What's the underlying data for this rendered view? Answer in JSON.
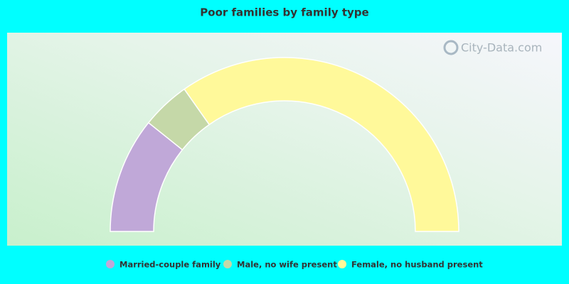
{
  "chart_data": {
    "type": "half-donut",
    "title": "Poor families by family type",
    "watermark": "City-Data.com",
    "categories": [
      "Married-couple family",
      "Male, no wife present",
      "Female, no husband present"
    ],
    "values": [
      21.5,
      9.0,
      69.5
    ],
    "colors": [
      "#c0a8d8",
      "#c5d8a8",
      "#fff99a"
    ]
  }
}
